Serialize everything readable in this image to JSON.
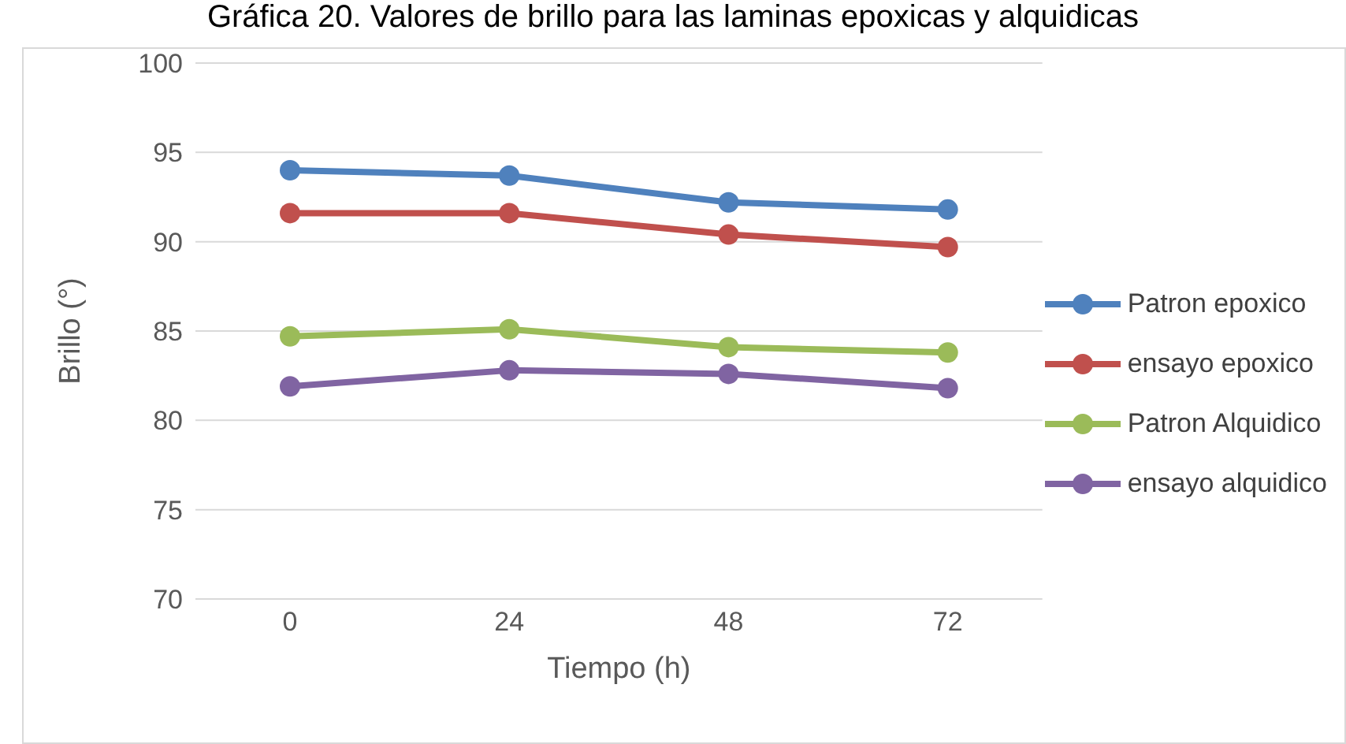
{
  "chart_data": {
    "type": "line",
    "title": "Gráfica 20. Valores de brillo para las laminas epoxicas y alquidicas",
    "xlabel": "Tiempo (h)",
    "ylabel": "Brillo (°)",
    "categories": [
      "0",
      "24",
      "48",
      "72"
    ],
    "series": [
      {
        "name": "Patron epoxico",
        "color": "#4f81bd",
        "values": [
          94.0,
          93.7,
          92.2,
          91.8
        ]
      },
      {
        "name": "ensayo epoxico",
        "color": "#c0504d",
        "values": [
          91.6,
          91.6,
          90.4,
          89.7
        ]
      },
      {
        "name": "Patron Alquidico",
        "color": "#9bbb59",
        "values": [
          84.7,
          85.1,
          84.1,
          83.8
        ]
      },
      {
        "name": "ensayo alquidico",
        "color": "#8064a2",
        "values": [
          81.9,
          82.8,
          82.6,
          81.8
        ]
      }
    ],
    "ylim": [
      70,
      100
    ],
    "yticks": [
      70,
      75,
      80,
      85,
      90,
      95,
      100
    ],
    "grid": "y",
    "legend": "right",
    "marker": "circle",
    "line_style": "solid"
  }
}
